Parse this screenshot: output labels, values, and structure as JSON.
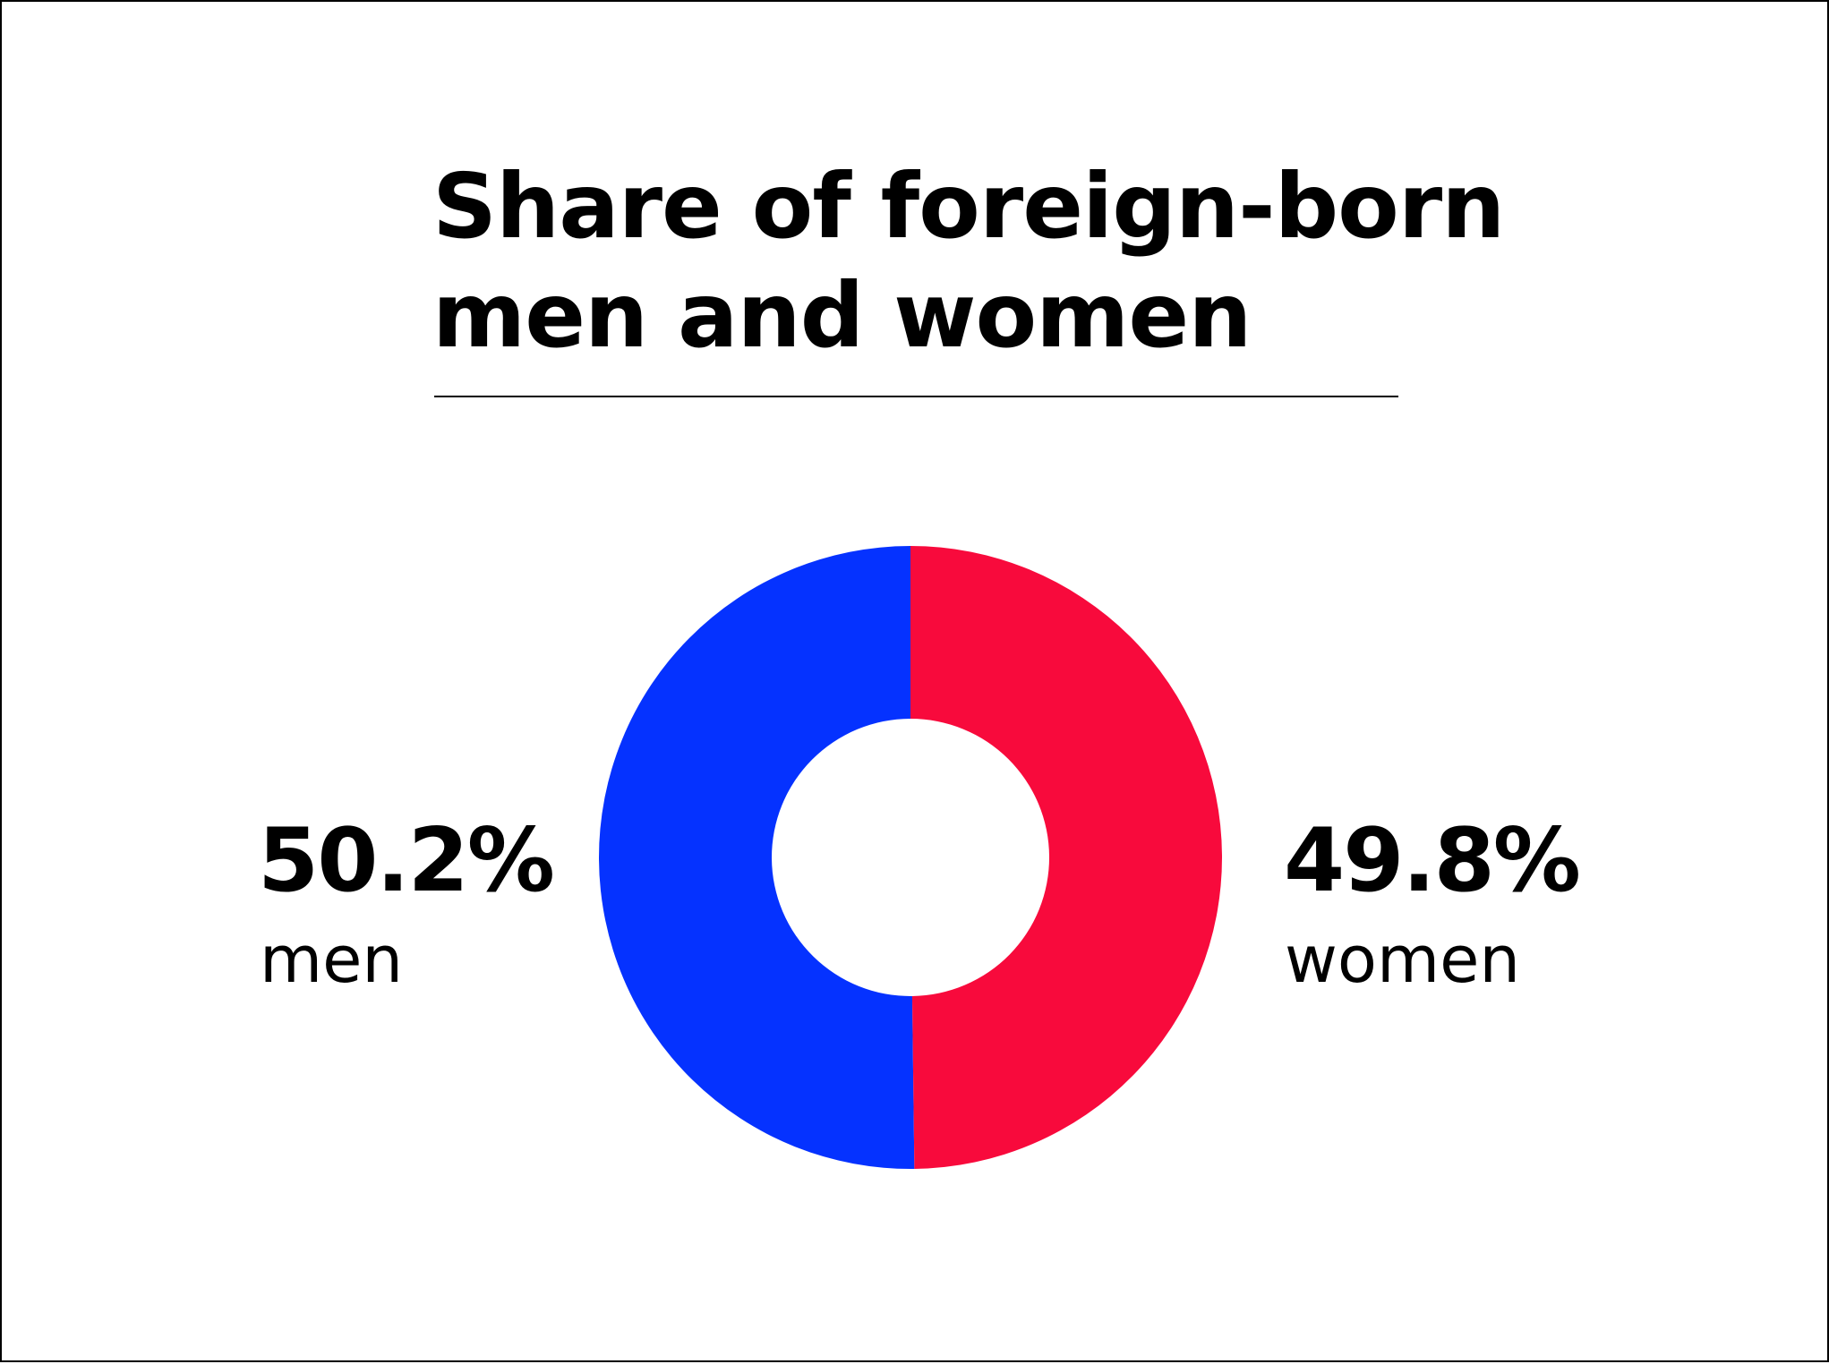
{
  "chart_data": {
    "type": "pie",
    "variant": "donut",
    "title_lines": [
      "Share of foreign-born",
      "men and women"
    ],
    "slices": [
      {
        "name": "men",
        "label": "men",
        "value": 50.2,
        "value_label": "50.2%",
        "color": "#0532FF"
      },
      {
        "name": "women",
        "label": "women",
        "value": 49.8,
        "value_label": "49.8%",
        "color": "#F80A3C"
      }
    ],
    "legend": "none"
  }
}
